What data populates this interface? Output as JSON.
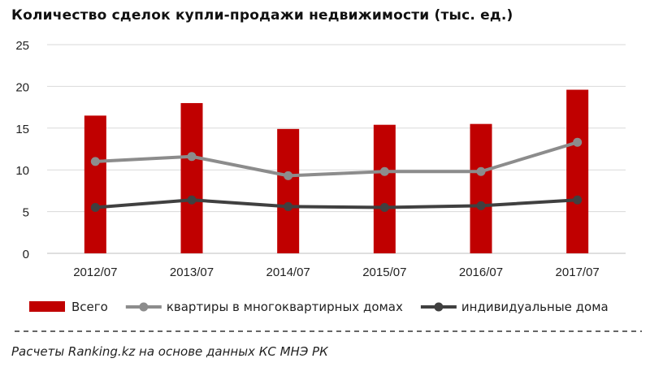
{
  "chart_data": {
    "type": "bar+line",
    "title": "Количество  сделок купли-продажи  недвижимости  (тыс. ед.)",
    "categories": [
      "2012/07",
      "2013/07",
      "2014/07",
      "2015/07",
      "2016/07",
      "2017/07"
    ],
    "ylim": [
      0,
      25
    ],
    "yticks": [
      "0",
      "5",
      "10",
      "15",
      "20",
      "25"
    ],
    "grid": true,
    "legend_position": "bottom",
    "series": [
      {
        "name": "Всего",
        "kind": "bar",
        "color": "#c00000",
        "values": [
          16.5,
          18.0,
          14.9,
          15.4,
          15.5,
          19.6
        ]
      },
      {
        "name": "квартиры в многоквартирных домах",
        "kind": "line",
        "color": "#8c8c8c",
        "values": [
          11.0,
          11.6,
          9.3,
          9.8,
          9.8,
          13.3
        ]
      },
      {
        "name": "индивидуальные дома",
        "kind": "line",
        "color": "#404040",
        "values": [
          5.5,
          6.4,
          5.6,
          5.5,
          5.7,
          6.4
        ]
      }
    ]
  },
  "footnote": "Расчеты Ranking.kz на основе данных  КС МНЭ РК"
}
